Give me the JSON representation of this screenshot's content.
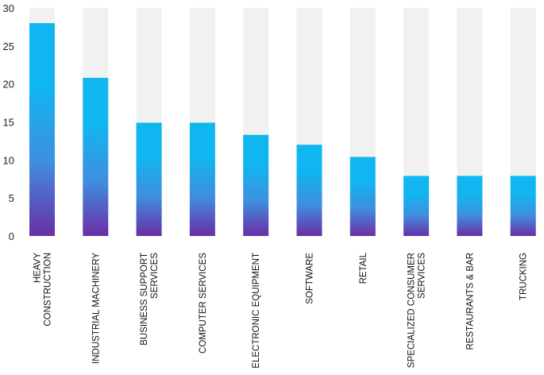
{
  "chart_data": {
    "type": "bar",
    "title": "",
    "xlabel": "",
    "ylabel": "",
    "ylim": [
      0,
      30
    ],
    "yticks": [
      0,
      5,
      10,
      15,
      20,
      25,
      30
    ],
    "grid": false,
    "legend": "none",
    "background_bar": true,
    "categories": [
      [
        "HEAVY",
        "CONSTRUCTION"
      ],
      [
        "INDUSTRIAL MACHINERY"
      ],
      [
        "BUSINESS SUPPORT",
        "SERVICES"
      ],
      [
        "COMPUTER SERVICES"
      ],
      [
        "ELECTRONIC EQUIPMENT"
      ],
      [
        "SOFTWARE"
      ],
      [
        "RETAIL"
      ],
      [
        "SPECIALIZED CONSUMER",
        "SERVICES"
      ],
      [
        "RESTAURANTS & BAR"
      ],
      [
        "TRUCKING"
      ]
    ],
    "values": [
      28,
      20.8,
      14.9,
      14.9,
      13.3,
      12.0,
      10.4,
      7.9,
      7.9,
      7.9
    ],
    "colors": {
      "bar_top": "#10b6f0",
      "bar_mid": "#3f8fe0",
      "bar_bottom": "#6a2ea6",
      "track": "#f1f1f1"
    }
  }
}
